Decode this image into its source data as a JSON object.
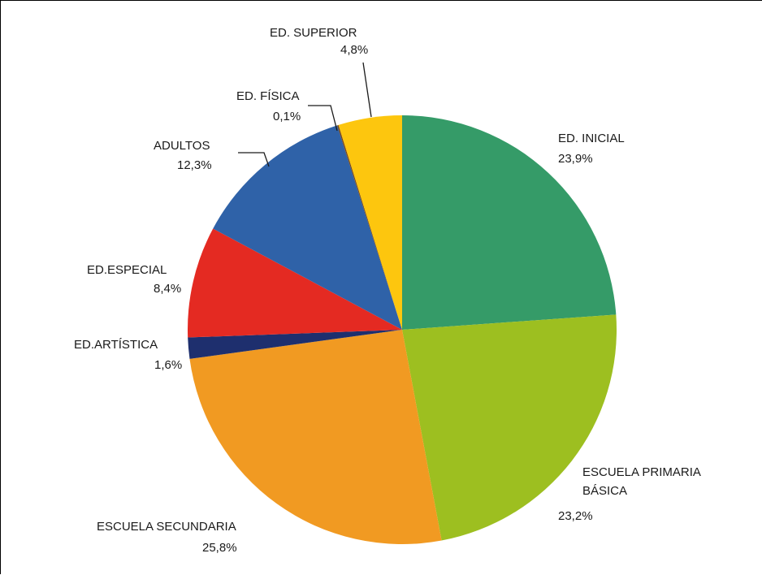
{
  "chart_data": {
    "type": "pie",
    "title": "",
    "slices": [
      {
        "label": "ED. INICIAL",
        "label_line2": "",
        "value": 23.9,
        "value_text": "23,9%",
        "color": "#359b68"
      },
      {
        "label": "ESCUELA PRIMARIA",
        "label_line2": "BÁSICA",
        "value": 23.2,
        "value_text": "23,2%",
        "color": "#9dbf20"
      },
      {
        "label": "ESCUELA SECUNDARIA",
        "label_line2": "",
        "value": 25.8,
        "value_text": "25,8%",
        "color": "#f19a22"
      },
      {
        "label": "ED.ARTÍSTICA",
        "label_line2": "",
        "value": 1.6,
        "value_text": "1,6%",
        "color": "#1e2f6e"
      },
      {
        "label": "ED.ESPECIAL",
        "label_line2": "",
        "value": 8.4,
        "value_text": "8,4%",
        "color": "#e42a22"
      },
      {
        "label": "ADULTOS",
        "label_line2": "",
        "value": 12.3,
        "value_text": "12,3%",
        "color": "#2f62a8"
      },
      {
        "label": "ED. FÍSICA",
        "label_line2": "",
        "value": 0.1,
        "value_text": "0,1%",
        "color": "#7a4a1a"
      },
      {
        "label": "ED. SUPERIOR",
        "label_line2": "",
        "value": 4.8,
        "value_text": "4,8%",
        "color": "#fdc60e"
      }
    ],
    "start_angle": "12 o'clock",
    "direction": "clockwise",
    "legend": "none"
  }
}
